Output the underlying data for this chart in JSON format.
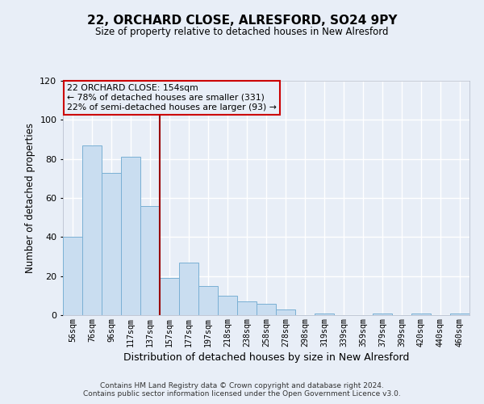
{
  "title": "22, ORCHARD CLOSE, ALRESFORD, SO24 9PY",
  "subtitle": "Size of property relative to detached houses in New Alresford",
  "xlabel": "Distribution of detached houses by size in New Alresford",
  "ylabel": "Number of detached properties",
  "bar_labels": [
    "56sqm",
    "76sqm",
    "96sqm",
    "117sqm",
    "137sqm",
    "157sqm",
    "177sqm",
    "197sqm",
    "218sqm",
    "238sqm",
    "258sqm",
    "278sqm",
    "298sqm",
    "319sqm",
    "339sqm",
    "359sqm",
    "379sqm",
    "399sqm",
    "420sqm",
    "440sqm",
    "460sqm"
  ],
  "bar_values": [
    40,
    87,
    73,
    81,
    56,
    19,
    27,
    15,
    10,
    7,
    6,
    3,
    0,
    1,
    0,
    0,
    1,
    0,
    1,
    0,
    1
  ],
  "bar_color": "#c9ddf0",
  "bar_edge_color": "#7ab0d4",
  "reference_line_color": "#990000",
  "annotation_title": "22 ORCHARD CLOSE: 154sqm",
  "annotation_line1": "← 78% of detached houses are smaller (331)",
  "annotation_line2": "22% of semi-detached houses are larger (93) →",
  "annotation_box_color": "#cc0000",
  "ylim": [
    0,
    120
  ],
  "yticks": [
    0,
    20,
    40,
    60,
    80,
    100,
    120
  ],
  "footer1": "Contains HM Land Registry data © Crown copyright and database right 2024.",
  "footer2": "Contains public sector information licensed under the Open Government Licence v3.0.",
  "fig_background": "#e8eef7",
  "plot_background": "#e8eef7",
  "grid_color": "#ffffff"
}
